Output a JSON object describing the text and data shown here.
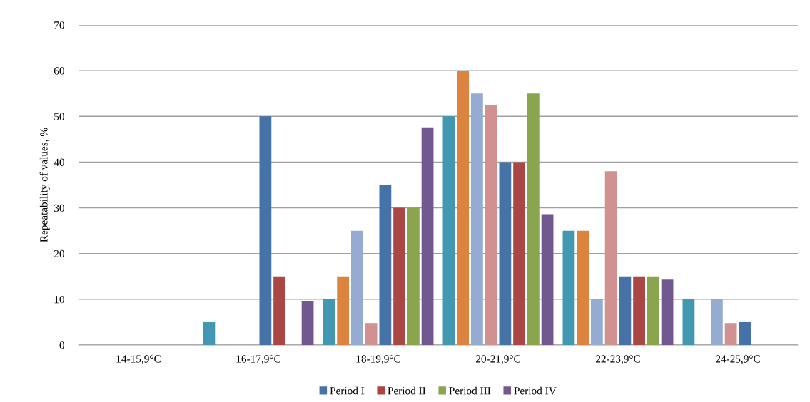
{
  "chart_data": {
    "type": "bar",
    "ylabel": "Repeatability of values, %",
    "categories": [
      "14-15,9°C",
      "16-17,9°C",
      "18-19,9°C",
      "20-21,9°C",
      "22-23,9°C",
      "24-25,9°C"
    ],
    "series": [
      {
        "color": "#4298b0",
        "values": [
          0,
          5,
          10,
          50,
          25,
          10
        ]
      },
      {
        "color": "#dc843f",
        "values": [
          0,
          0,
          15,
          60,
          25,
          0
        ]
      },
      {
        "color": "#95abd1",
        "values": [
          0,
          0,
          25,
          55,
          10,
          10
        ]
      },
      {
        "color": "#d29191",
        "values": [
          0,
          0,
          4.8,
          52.5,
          38,
          4.8
        ]
      },
      {
        "name": "Period I",
        "color": "#4572a7",
        "values": [
          0,
          50,
          35,
          40,
          15,
          5
        ]
      },
      {
        "name": "Period II",
        "color": "#aa4643",
        "values": [
          0,
          15,
          30,
          40,
          15,
          0
        ]
      },
      {
        "name": "Period III",
        "color": "#89a54e",
        "values": [
          0,
          0,
          30,
          55,
          15,
          0
        ]
      },
      {
        "name": "Period IV",
        "color": "#71588f",
        "values": [
          0,
          9.6,
          47.6,
          28.6,
          14.3,
          0
        ]
      }
    ],
    "ylim": [
      0,
      70
    ],
    "yticks": [
      0,
      10,
      20,
      30,
      40,
      50,
      60,
      70
    ],
    "grid": "y",
    "legend": "bottom"
  }
}
